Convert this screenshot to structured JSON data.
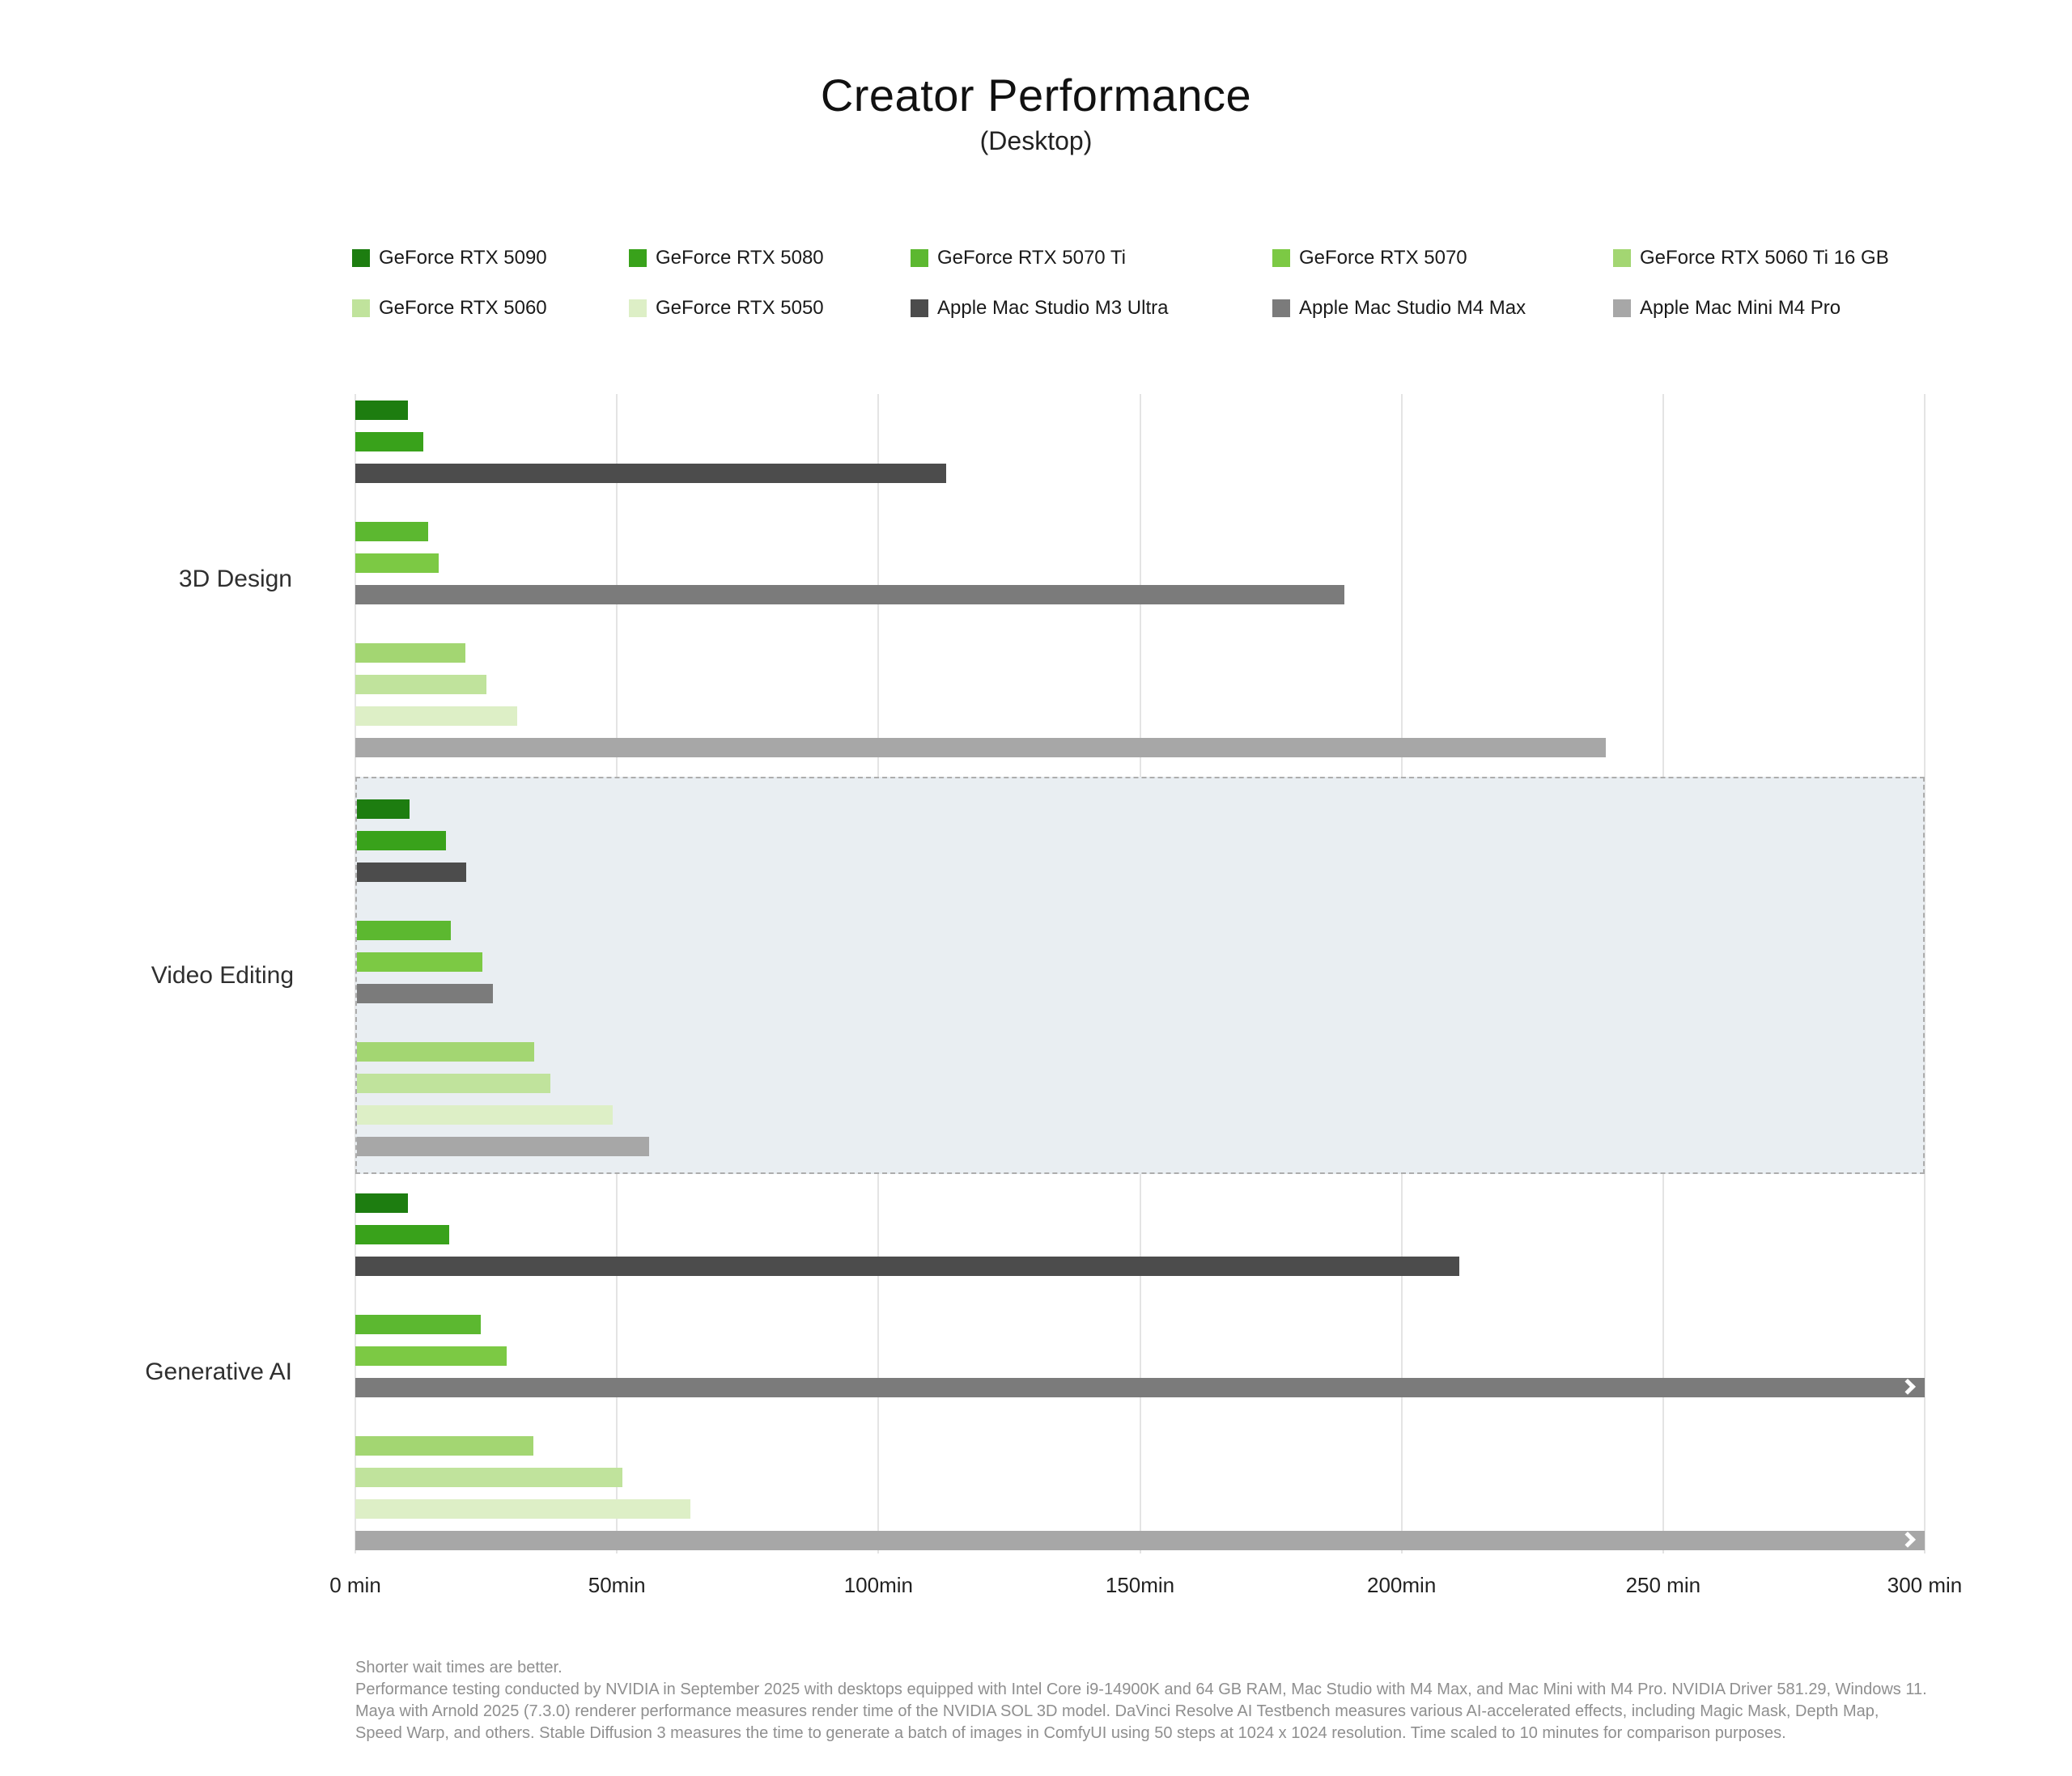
{
  "header": {
    "title": "Creator Performance",
    "subtitle": "(Desktop)"
  },
  "legend": {
    "rows": [
      [
        "GeForce RTX 5090",
        "GeForce RTX 5080",
        "GeForce RTX 5070 Ti",
        "GeForce RTX 5070",
        "GeForce RTX 5060 Ti 16 GB"
      ],
      [
        "GeForce RTX 5060",
        "GeForce RTX 5050",
        "Apple Mac Studio M3 Ultra",
        "Apple Mac Studio M4 Max",
        "Apple Mac Mini M4 Pro"
      ]
    ]
  },
  "chart_data": {
    "type": "bar",
    "orientation": "horizontal",
    "unit": "minutes",
    "note": "shorter is better",
    "xlim": [
      0,
      300
    ],
    "grid": true,
    "legend_position": "top",
    "x_ticks": [
      {
        "value": 0,
        "label": "0 min"
      },
      {
        "value": 50,
        "label": "50min"
      },
      {
        "value": 100,
        "label": "100min"
      },
      {
        "value": 150,
        "label": "150min"
      },
      {
        "value": 200,
        "label": "200min"
      },
      {
        "value": 250,
        "label": "250 min"
      },
      {
        "value": 300,
        "label": "300 min"
      }
    ],
    "series": [
      {
        "name": "GeForce RTX 5090",
        "color": "#1d7d10"
      },
      {
        "name": "GeForce RTX 5080",
        "color": "#39a21b"
      },
      {
        "name": "GeForce RTX 5070 Ti",
        "color": "#5cb830"
      },
      {
        "name": "GeForce RTX 5070",
        "color": "#7cc944"
      },
      {
        "name": "GeForce RTX 5060 Ti 16 GB",
        "color": "#a3d672"
      },
      {
        "name": "GeForce RTX 5060",
        "color": "#c0e39c"
      },
      {
        "name": "GeForce RTX 5050",
        "color": "#ddefc6"
      },
      {
        "name": "Apple Mac Studio M3 Ultra",
        "color": "#4c4c4c"
      },
      {
        "name": "Apple Mac Studio M4 Max",
        "color": "#7b7b7b"
      },
      {
        "name": "Apple Mac Mini M4 Pro",
        "color": "#a7a7a7"
      }
    ],
    "categories": [
      {
        "label": "3D Design",
        "highlight": false,
        "groups": [
          [
            {
              "series": "GeForce RTX 5090",
              "value": 10
            },
            {
              "series": "GeForce RTX 5080",
              "value": 13
            },
            {
              "series": "Apple Mac Studio M3 Ultra",
              "value": 113
            }
          ],
          [
            {
              "series": "GeForce RTX 5070 Ti",
              "value": 14
            },
            {
              "series": "GeForce RTX 5070",
              "value": 16
            },
            {
              "series": "Apple Mac Studio M4 Max",
              "value": 189
            }
          ],
          [
            {
              "series": "GeForce RTX 5060 Ti 16 GB",
              "value": 21
            },
            {
              "series": "GeForce RTX 5060",
              "value": 25
            },
            {
              "series": "GeForce RTX 5050",
              "value": 31
            },
            {
              "series": "Apple Mac Mini M4 Pro",
              "value": 239
            }
          ]
        ]
      },
      {
        "label": "Video Editing",
        "highlight": true,
        "groups": [
          [
            {
              "series": "GeForce RTX 5090",
              "value": 10
            },
            {
              "series": "GeForce RTX 5080",
              "value": 17
            },
            {
              "series": "Apple Mac Studio M3 Ultra",
              "value": 21
            }
          ],
          [
            {
              "series": "GeForce RTX 5070 Ti",
              "value": 18
            },
            {
              "series": "GeForce RTX 5070",
              "value": 24
            },
            {
              "series": "Apple Mac Studio M4 Max",
              "value": 26
            }
          ],
          [
            {
              "series": "GeForce RTX 5060 Ti 16 GB",
              "value": 34
            },
            {
              "series": "GeForce RTX 5060",
              "value": 37
            },
            {
              "series": "GeForce RTX 5050",
              "value": 49
            },
            {
              "series": "Apple Mac Mini M4 Pro",
              "value": 56
            }
          ]
        ]
      },
      {
        "label": "Generative AI",
        "highlight": false,
        "groups": [
          [
            {
              "series": "GeForce RTX 5090",
              "value": 10
            },
            {
              "series": "GeForce RTX 5080",
              "value": 18
            },
            {
              "series": "Apple Mac Studio M3 Ultra",
              "value": 211
            }
          ],
          [
            {
              "series": "GeForce RTX 5070 Ti",
              "value": 24
            },
            {
              "series": "GeForce RTX 5070",
              "value": 29
            },
            {
              "series": "Apple Mac Studio M4 Max",
              "value": 300,
              "overflow": true
            }
          ],
          [
            {
              "series": "GeForce RTX 5060 Ti 16 GB",
              "value": 34
            },
            {
              "series": "GeForce RTX 5060",
              "value": 51
            },
            {
              "series": "GeForce RTX 5050",
              "value": 64
            },
            {
              "series": "Apple Mac Mini M4 Pro",
              "value": 300,
              "overflow": true
            }
          ]
        ]
      }
    ]
  },
  "footnote": {
    "line1": "Shorter wait times are better.",
    "body": "Performance testing conducted by NVIDIA in September 2025 with desktops equipped with Intel Core i9-14900K and 64 GB RAM, Mac Studio with M4 Max, and Mac Mini with M4 Pro. NVIDIA Driver 581.29, Windows 11. Maya with Arnold 2025 (7.3.0) renderer performance measures render time of the NVIDIA SOL 3D model. DaVinci Resolve AI Testbench measures various AI-accelerated effects, including Magic Mask, Depth Map, Speed Warp, and others. Stable Diffusion 3 measures the time to generate a batch of images in ComfyUI using 50 steps at 1024 x 1024 resolution. Time scaled to 10 minutes for comparison purposes."
  }
}
